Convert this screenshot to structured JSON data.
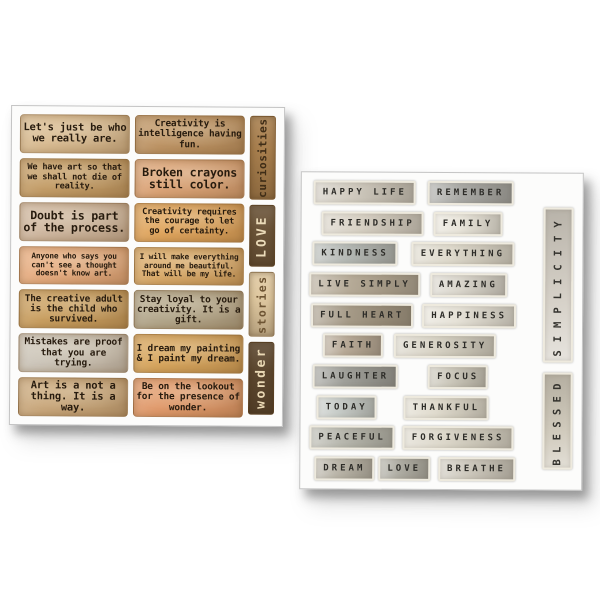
{
  "page": {
    "background": "#ffffff"
  },
  "left_sheet": {
    "title": "quote stickers sheet",
    "text_color": "#271b0e",
    "rows": [
      {
        "left": {
          "text": "Let's just be who we really are.",
          "bg": "#d8bb92"
        },
        "right": {
          "text": "Creativity is intelligence having fun.",
          "bg": "#bd9465"
        }
      },
      {
        "left": {
          "text": "We have art so that we shall not die of reality.",
          "bg": "#c39d68"
        },
        "right": {
          "text": "Broken crayons still color.",
          "bg": "#dba478"
        }
      },
      {
        "left": {
          "text": "Doubt is part of the process.",
          "bg": "#cfb8a1"
        },
        "right": {
          "text": "Creativity requires the courage to let go of certainty.",
          "bg": "#dfa55e"
        }
      },
      {
        "left": {
          "text": "Anyone who says you can't see a thought doesn't know art.",
          "bg": "#e6ac80"
        },
        "right": {
          "text": "I will make everything around me beautiful. That will be my life.",
          "bg": "#d9aa6a"
        }
      },
      {
        "left": {
          "text": "The creative adult is the child who survived.",
          "bg": "#c89e60"
        },
        "right": {
          "text": "Stay loyal to your creativity. It is a gift.",
          "bg": "#b3a78c"
        }
      },
      {
        "left": {
          "text": "Mistakes are proof that you are trying.",
          "bg": "#cbc4b8"
        },
        "right": {
          "text": "I dream my painting & I paint my dream.",
          "bg": "#d6a55e"
        }
      },
      {
        "left": {
          "text": "Art is a not a thing. It is a way.",
          "bg": "#c9a87d"
        },
        "right": {
          "text": "Be on the lookout for the presence of wonder.",
          "bg": "#e09a6c"
        }
      }
    ],
    "side_labels": [
      {
        "text": "curiosities",
        "bg": "#a87f4e",
        "color": "#3f2d17"
      },
      {
        "text": "LOVE",
        "bg": "#6b5439",
        "color": "#ecdcba"
      },
      {
        "text": "stories",
        "bg": "#dfc8a0",
        "color": "#6d5433"
      },
      {
        "text": "wonder",
        "bg": "#5c472f",
        "color": "#ead9b5"
      }
    ]
  },
  "right_sheet": {
    "title": "word stickers sheet",
    "text_color": "#2d2c28",
    "rows": [
      [
        {
          "text": "HAPPY LIFE",
          "bg": "#cdc7bb"
        },
        {
          "text": "REMEMBER",
          "bg": "#a5a5a1"
        }
      ],
      [
        {
          "text": "FRIENDSHIP",
          "bg": "#d5cec1"
        },
        {
          "text": "FAMILY",
          "bg": "#e8e4d9"
        }
      ],
      [
        {
          "text": "KINDNESS",
          "bg": "#b2b6b2"
        },
        {
          "text": "EVERYTHING",
          "bg": "#dcd7c9"
        }
      ],
      [
        {
          "text": "LIVE SIMPLY",
          "bg": "#b1a591"
        },
        {
          "text": "AMAZING",
          "bg": "#d8d4ca"
        }
      ],
      [
        {
          "text": "FULL HEART",
          "bg": "#a09480"
        },
        {
          "text": "HAPPINESS",
          "bg": "#e4e0d5"
        }
      ],
      [
        {
          "text": "FAITH",
          "bg": "#b4a592"
        },
        {
          "text": "GENEROSITY",
          "bg": "#d7d2c4"
        }
      ],
      [
        {
          "text": "LAUGHTER",
          "bg": "#9a9a94"
        },
        {
          "text": "FOCUS",
          "bg": "#c9c5b8"
        }
      ],
      [
        {
          "text": "TODAY",
          "bg": "#c3c8c4"
        },
        {
          "text": "THANKFUL",
          "bg": "#ded9cb"
        }
      ],
      [
        {
          "text": "PEACEFUL",
          "bg": "#b4b4aa"
        },
        {
          "text": "FORGIVENESS",
          "bg": "#dad5c7"
        }
      ],
      [
        {
          "text": "DREAM",
          "bg": "#b7b2a5"
        },
        {
          "text": "LOVE",
          "bg": "#acaaa0"
        },
        {
          "text": "BREATHE",
          "bg": "#cbc6ba"
        }
      ]
    ],
    "side_labels": [
      {
        "text": "SIMPLICITY",
        "bg": "#d6d1c8",
        "color": "#34332e"
      },
      {
        "text": "BLESSED",
        "bg": "#d0cabc",
        "color": "#34332e"
      }
    ]
  }
}
